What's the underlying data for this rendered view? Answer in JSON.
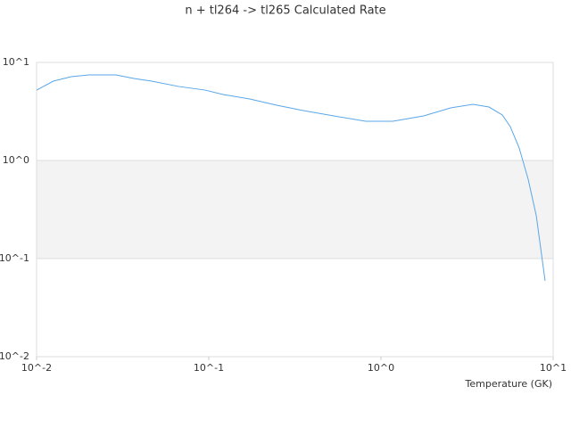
{
  "chart_data": {
    "type": "line",
    "title": "n + tl264 -> tl265 Calculated Rate",
    "x_label": "Temperature (GK)",
    "x": [
      0.01,
      0.0125,
      0.0159,
      0.0202,
      0.0289,
      0.0367,
      0.0466,
      0.0667,
      0.0953,
      0.121,
      0.173,
      0.248,
      0.354,
      0.57,
      0.816,
      1.17,
      1.77,
      2.54,
      3.42,
      4.24,
      5.07,
      5.64,
      6.35,
      7.16,
      7.98,
      8.98
    ],
    "series": [
      {
        "color": "#5aa6e8",
        "values": [
          5.22,
          6.44,
          7.16,
          7.46,
          7.46,
          6.86,
          6.44,
          5.69,
          5.22,
          4.71,
          4.24,
          3.66,
          3.23,
          2.79,
          2.51,
          2.51,
          2.85,
          3.44,
          3.74,
          3.51,
          2.91,
          2.21,
          1.34,
          0.644,
          0.273,
          0.0593
        ]
      }
    ],
    "xscale": "log",
    "yscale": "log",
    "xlim": [
      0.01,
      10
    ],
    "ylim": [
      0.01,
      10
    ],
    "xticks": [
      {
        "value": 0.01,
        "label": "10^-2"
      },
      {
        "value": 0.1,
        "label": "10^-1"
      },
      {
        "value": 1,
        "label": "10^0"
      },
      {
        "value": 10,
        "label": "10^1"
      }
    ],
    "yticks": [
      {
        "value": 0.01,
        "label": "10^-2"
      },
      {
        "value": 0.1,
        "label": "10^-1"
      },
      {
        "value": 1,
        "label": "10^0"
      },
      {
        "value": 10,
        "label": "10^1"
      }
    ],
    "grid": true
  }
}
